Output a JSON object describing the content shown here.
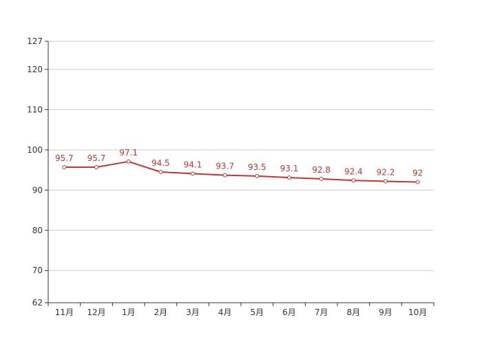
{
  "chart_data": {
    "type": "line",
    "title": "",
    "xlabel": "",
    "ylabel": "",
    "categories": [
      "11月",
      "12月",
      "1月",
      "2月",
      "3月",
      "4月",
      "5月",
      "6月",
      "7月",
      "8月",
      "9月",
      "10月"
    ],
    "series": [
      {
        "values": [
          95.7,
          95.7,
          97.1,
          94.5,
          94.1,
          93.7,
          93.5,
          93.1,
          92.8,
          92.4,
          92.2,
          92
        ],
        "color": "#c23531"
      }
    ],
    "data_labels": [
      "95.7",
      "95.7",
      "97.1",
      "94.5",
      "94.1",
      "93.7",
      "93.5",
      "93.1",
      "92.8",
      "92.4",
      "92.2",
      "92"
    ],
    "ylim": [
      62,
      127
    ],
    "yticks": [
      62,
      70,
      80,
      90,
      100,
      110,
      120,
      127
    ],
    "ytick_labels": [
      "62",
      "70",
      "80",
      "90",
      "100",
      "110",
      "120",
      "127"
    ],
    "grid": true,
    "legend": "none"
  }
}
